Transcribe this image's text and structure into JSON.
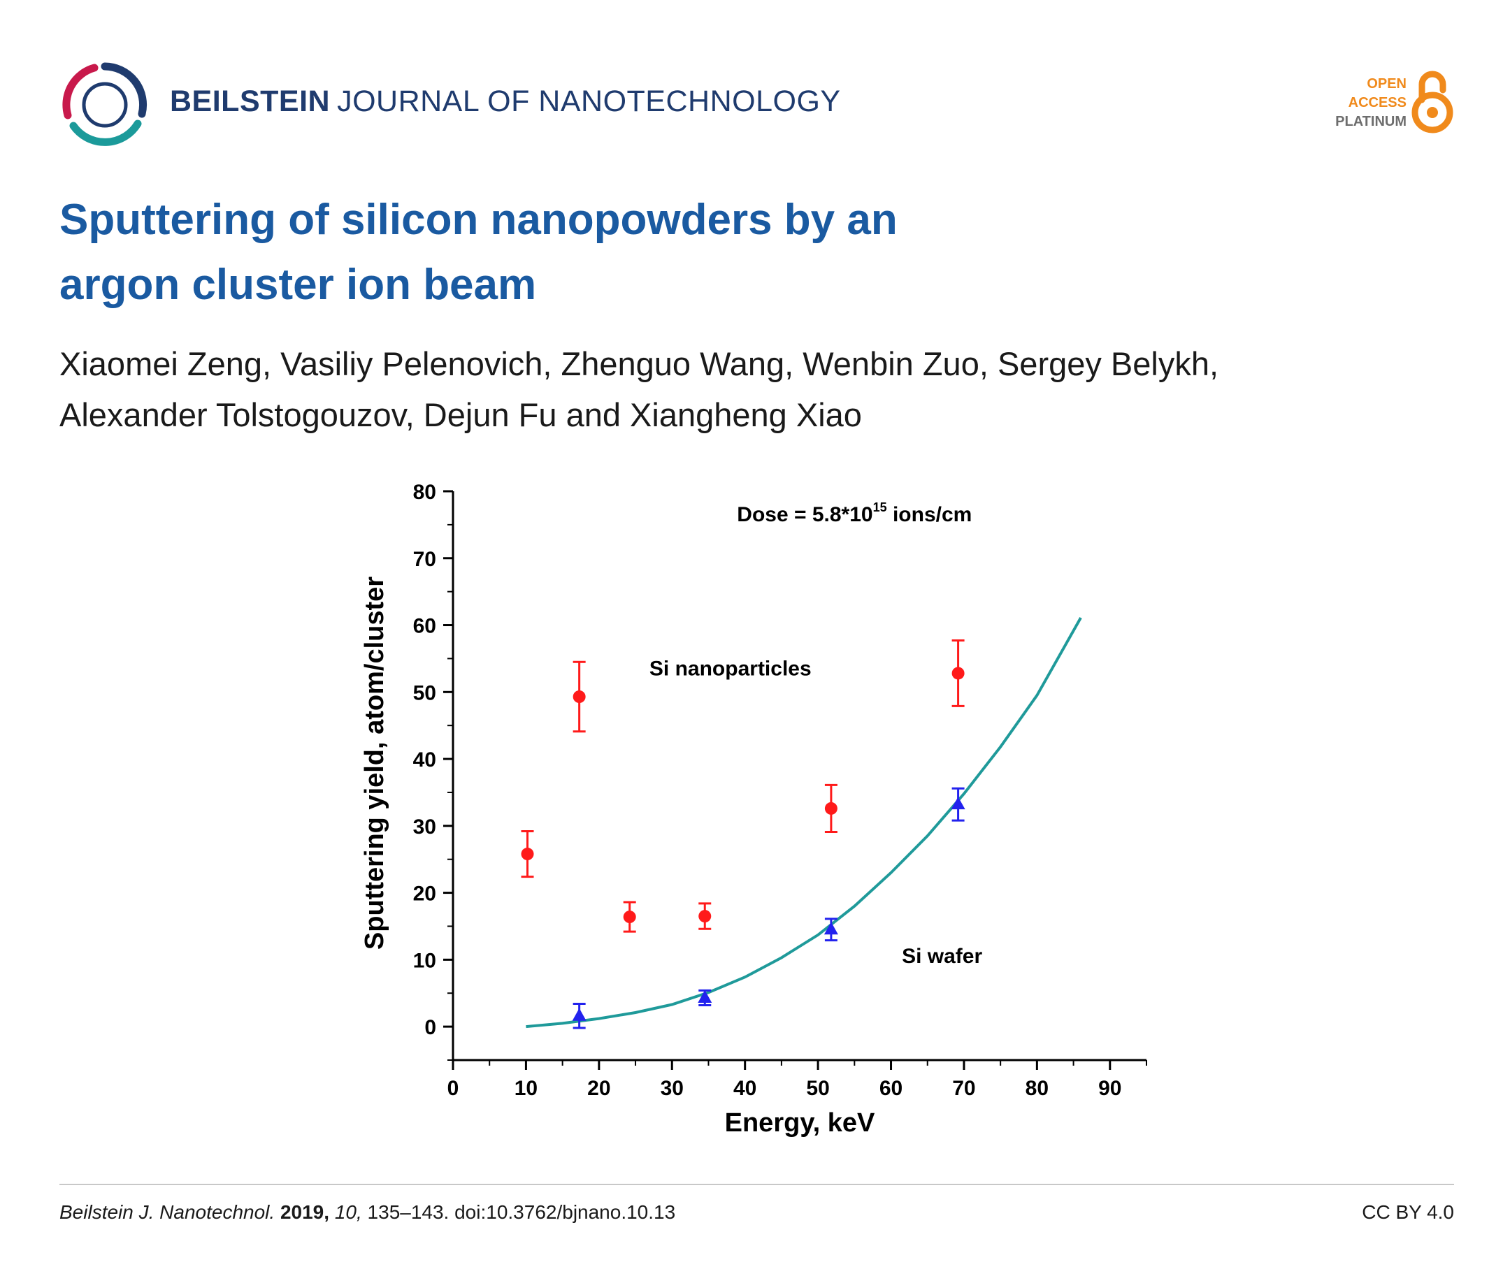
{
  "journal": {
    "brand": "BEILSTEIN",
    "name": "JOURNAL OF NANOTECHNOLOGY",
    "logo_colors": [
      "#1f3b6e",
      "#c8194b",
      "#1b9a9a"
    ]
  },
  "open_access": {
    "line1": "OPEN",
    "line2": "ACCESS",
    "line3": "PLATINUM",
    "icon": "open-lock-icon",
    "color": "#f08a1c"
  },
  "article": {
    "title_line1": "Sputtering of silicon nanopowders by an",
    "title_line2": "argon cluster ion beam",
    "authors_line1": "Xiaomei Zeng, Vasiliy Pelenovich, Zhenguo Wang, Wenbin Zuo, Sergey Belykh,",
    "authors_line2": "Alexander Tolstogouzov, Dejun Fu and Xiangheng Xiao"
  },
  "chart_data": {
    "type": "scatter",
    "title": "",
    "xlabel": "Energy, keV",
    "ylabel": "Sputtering yield, atom/cluster",
    "xlim": [
      0,
      95
    ],
    "ylim": [
      -5,
      80
    ],
    "xticks": [
      0,
      10,
      20,
      30,
      40,
      50,
      60,
      70,
      80,
      90
    ],
    "yticks": [
      0,
      10,
      20,
      30,
      40,
      50,
      60,
      70,
      80
    ],
    "grid": false,
    "annotations": [
      {
        "text": "Dose = 5.8*10",
        "sup": "15",
        "after": " ions/cm",
        "x": 55,
        "y": 75.5
      },
      {
        "text": "Si nanoparticles",
        "x": 38,
        "y": 52.5
      },
      {
        "text": "Si wafer",
        "x": 67,
        "y": 9.5
      }
    ],
    "series": [
      {
        "label": "Si nanoparticles",
        "marker": "circle",
        "color": "#ff1a1a",
        "points": [
          {
            "x": 10.2,
            "y": 25.8,
            "err": 3.4
          },
          {
            "x": 17.3,
            "y": 49.3,
            "err": 5.2
          },
          {
            "x": 24.2,
            "y": 16.4,
            "err": 2.2
          },
          {
            "x": 34.5,
            "y": 16.5,
            "err": 1.9
          },
          {
            "x": 51.8,
            "y": 32.6,
            "err": 3.5
          },
          {
            "x": 69.2,
            "y": 52.8,
            "err": 4.9
          }
        ]
      },
      {
        "label": "Si wafer",
        "marker": "triangle",
        "color": "#2222ee",
        "points": [
          {
            "x": 17.3,
            "y": 1.6,
            "err": 1.8
          },
          {
            "x": 34.5,
            "y": 4.3,
            "err": 1.1
          },
          {
            "x": 51.8,
            "y": 14.5,
            "err": 1.6
          },
          {
            "x": 69.2,
            "y": 33.2,
            "err": 2.4
          }
        ]
      },
      {
        "label": "fit",
        "type": "line",
        "color": "#1f9a9a",
        "x": [
          10,
          15,
          20,
          25,
          30,
          35,
          40,
          45,
          50,
          55,
          60,
          65,
          70,
          75,
          80,
          86
        ],
        "y": [
          0,
          0.5,
          1.2,
          2.1,
          3.3,
          5.1,
          7.4,
          10.3,
          13.7,
          18.0,
          23.0,
          28.5,
          34.8,
          41.8,
          49.5,
          61.1
        ]
      }
    ]
  },
  "footer": {
    "journal": "Beilstein J. Nanotechnol.",
    "year": "2019,",
    "volume": "10,",
    "pages_doi": "135–143. doi:10.3762/bjnano.10.13",
    "license": "CC BY 4.0"
  }
}
